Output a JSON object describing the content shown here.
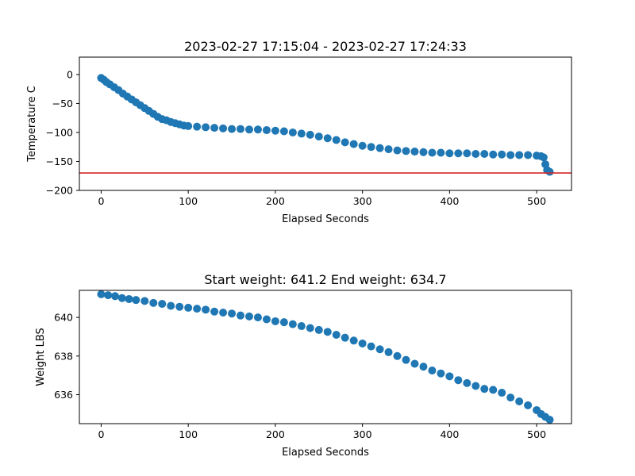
{
  "chart_data": [
    {
      "type": "scatter",
      "title": "2023-02-27 17:15:04 - 2023-02-27 17:24:33",
      "xlabel": "Elapsed Seconds",
      "ylabel": "Temperature C",
      "xlim": [
        -25,
        540
      ],
      "ylim": [
        -200,
        30
      ],
      "xticks": [
        0,
        100,
        200,
        300,
        400,
        500
      ],
      "yticks": [
        -200,
        -150,
        -100,
        -50,
        0
      ],
      "grid": false,
      "marker_color": "#1f77b4",
      "reference_line": {
        "y": -170,
        "color": "#d62728"
      },
      "points": [
        [
          0,
          -6
        ],
        [
          3,
          -9
        ],
        [
          6,
          -13
        ],
        [
          10,
          -17
        ],
        [
          15,
          -22
        ],
        [
          20,
          -27
        ],
        [
          25,
          -33
        ],
        [
          30,
          -38
        ],
        [
          35,
          -43
        ],
        [
          40,
          -48
        ],
        [
          45,
          -53
        ],
        [
          50,
          -58
        ],
        [
          55,
          -63
        ],
        [
          60,
          -68
        ],
        [
          65,
          -73
        ],
        [
          70,
          -77
        ],
        [
          75,
          -79
        ],
        [
          80,
          -82
        ],
        [
          85,
          -84
        ],
        [
          90,
          -86
        ],
        [
          95,
          -88
        ],
        [
          100,
          -89
        ],
        [
          110,
          -90
        ],
        [
          120,
          -91
        ],
        [
          130,
          -92
        ],
        [
          140,
          -93
        ],
        [
          150,
          -94
        ],
        [
          160,
          -94
        ],
        [
          170,
          -95
        ],
        [
          180,
          -95
        ],
        [
          190,
          -96
        ],
        [
          200,
          -97
        ],
        [
          210,
          -98
        ],
        [
          220,
          -100
        ],
        [
          230,
          -102
        ],
        [
          240,
          -104
        ],
        [
          250,
          -107
        ],
        [
          260,
          -110
        ],
        [
          270,
          -113
        ],
        [
          280,
          -117
        ],
        [
          290,
          -120
        ],
        [
          300,
          -123
        ],
        [
          310,
          -125
        ],
        [
          320,
          -127
        ],
        [
          330,
          -129
        ],
        [
          340,
          -131
        ],
        [
          350,
          -132
        ],
        [
          360,
          -133
        ],
        [
          370,
          -134
        ],
        [
          380,
          -135
        ],
        [
          390,
          -135
        ],
        [
          400,
          -136
        ],
        [
          410,
          -136
        ],
        [
          420,
          -136
        ],
        [
          430,
          -137
        ],
        [
          440,
          -137
        ],
        [
          450,
          -138
        ],
        [
          460,
          -138
        ],
        [
          470,
          -139
        ],
        [
          480,
          -139
        ],
        [
          490,
          -139
        ],
        [
          500,
          -140
        ],
        [
          505,
          -141
        ],
        [
          508,
          -143
        ],
        [
          510,
          -155
        ],
        [
          512,
          -165
        ],
        [
          515,
          -168
        ]
      ]
    },
    {
      "type": "scatter",
      "title": "Start weight: 641.2 End weight: 634.7",
      "xlabel": "Elapsed Seconds",
      "ylabel": "Weight LBS",
      "xlim": [
        -25,
        540
      ],
      "ylim": [
        634.5,
        641.4
      ],
      "xticks": [
        0,
        100,
        200,
        300,
        400,
        500
      ],
      "yticks": [
        636,
        638,
        640
      ],
      "grid": false,
      "marker_color": "#1f77b4",
      "points": [
        [
          0,
          641.2
        ],
        [
          8,
          641.15
        ],
        [
          16,
          641.1
        ],
        [
          24,
          641.0
        ],
        [
          32,
          640.95
        ],
        [
          40,
          640.9
        ],
        [
          50,
          640.85
        ],
        [
          60,
          640.75
        ],
        [
          70,
          640.7
        ],
        [
          80,
          640.6
        ],
        [
          90,
          640.55
        ],
        [
          100,
          640.5
        ],
        [
          110,
          640.45
        ],
        [
          120,
          640.4
        ],
        [
          130,
          640.3
        ],
        [
          140,
          640.25
        ],
        [
          150,
          640.2
        ],
        [
          160,
          640.1
        ],
        [
          170,
          640.05
        ],
        [
          180,
          640.0
        ],
        [
          190,
          639.9
        ],
        [
          200,
          639.8
        ],
        [
          210,
          639.75
        ],
        [
          220,
          639.65
        ],
        [
          230,
          639.55
        ],
        [
          240,
          639.45
        ],
        [
          250,
          639.35
        ],
        [
          260,
          639.25
        ],
        [
          270,
          639.1
        ],
        [
          280,
          638.95
        ],
        [
          290,
          638.8
        ],
        [
          300,
          638.65
        ],
        [
          310,
          638.5
        ],
        [
          320,
          638.35
        ],
        [
          330,
          638.2
        ],
        [
          340,
          638.0
        ],
        [
          350,
          637.8
        ],
        [
          360,
          637.6
        ],
        [
          370,
          637.45
        ],
        [
          380,
          637.25
        ],
        [
          390,
          637.1
        ],
        [
          400,
          636.95
        ],
        [
          410,
          636.75
        ],
        [
          420,
          636.6
        ],
        [
          430,
          636.45
        ],
        [
          440,
          636.3
        ],
        [
          450,
          636.25
        ],
        [
          460,
          636.1
        ],
        [
          470,
          635.85
        ],
        [
          480,
          635.65
        ],
        [
          490,
          635.45
        ],
        [
          500,
          635.2
        ],
        [
          505,
          635.0
        ],
        [
          510,
          634.85
        ],
        [
          515,
          634.7
        ]
      ]
    }
  ]
}
